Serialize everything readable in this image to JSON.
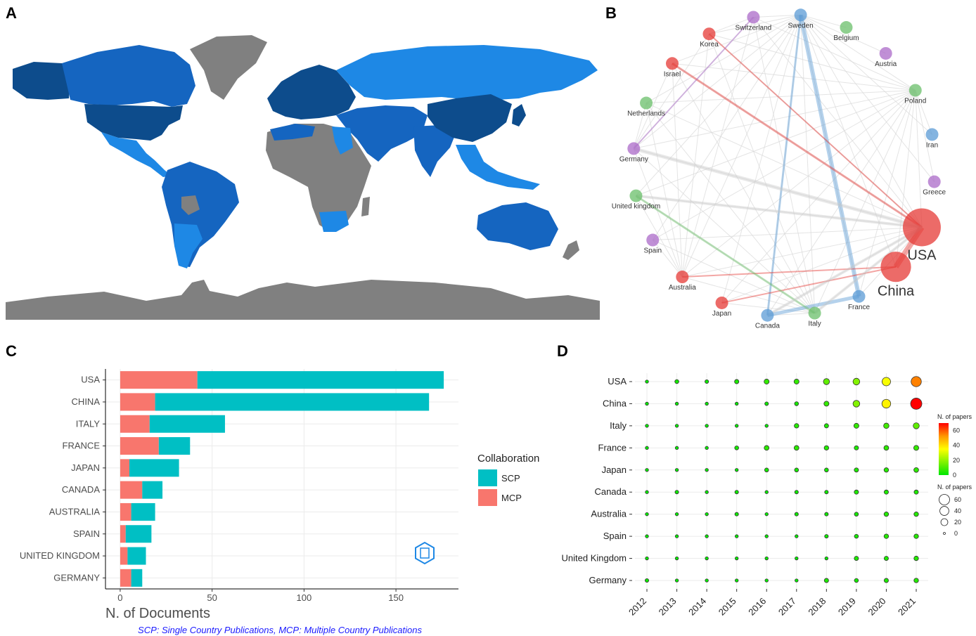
{
  "panels": {
    "a": "A",
    "b": "B",
    "c": "C",
    "d": "D"
  },
  "colors": {
    "ocean": "#ffffff",
    "land_none": "#808080",
    "land_low": "#1e88e5",
    "land_mid": "#1565c0",
    "land_high": "#0d4c8c",
    "scp": "#00bfc4",
    "mcp": "#f8766d",
    "grid": "#ebebeb",
    "net_red": "#e53935",
    "net_blue": "#5b9bd5",
    "net_green": "#6abf69",
    "net_purple": "#ab6ac8"
  },
  "network": {
    "nodes": [
      {
        "name": "Sweden",
        "group": "blue",
        "size": 1
      },
      {
        "name": "Belgium",
        "group": "green",
        "size": 1
      },
      {
        "name": "Austria",
        "group": "purple",
        "size": 1
      },
      {
        "name": "Poland",
        "group": "green",
        "size": 1
      },
      {
        "name": "Iran",
        "group": "blue",
        "size": 1
      },
      {
        "name": "Greece",
        "group": "purple",
        "size": 1
      },
      {
        "name": "USA",
        "group": "red",
        "size": 3
      },
      {
        "name": "China",
        "group": "red",
        "size": 2.4
      },
      {
        "name": "France",
        "group": "blue",
        "size": 1
      },
      {
        "name": "Italy",
        "group": "green",
        "size": 1
      },
      {
        "name": "Canada",
        "group": "blue",
        "size": 1
      },
      {
        "name": "Japan",
        "group": "red",
        "size": 1
      },
      {
        "name": "Australia",
        "group": "red",
        "size": 1
      },
      {
        "name": "Spain",
        "group": "purple",
        "size": 1
      },
      {
        "name": "United kingdom",
        "group": "green",
        "size": 1
      },
      {
        "name": "Germany",
        "group": "purple",
        "size": 1
      },
      {
        "name": "Netherlands",
        "group": "green",
        "size": 1
      },
      {
        "name": "Israel",
        "group": "red",
        "size": 1
      },
      {
        "name": "Korea",
        "group": "red",
        "size": 1
      },
      {
        "name": "Switzerland",
        "group": "purple",
        "size": 1
      }
    ]
  },
  "chart_data": [
    {
      "panel": "C",
      "type": "bar",
      "orientation": "horizontal",
      "stacked": true,
      "categories": [
        "USA",
        "CHINA",
        "ITALY",
        "FRANCE",
        "JAPAN",
        "CANADA",
        "AUSTRALIA",
        "SPAIN",
        "UNITED KINGDOM",
        "GERMANY"
      ],
      "series": [
        {
          "name": "MCP",
          "values": [
            42,
            19,
            16,
            21,
            5,
            12,
            6,
            3,
            4,
            6
          ]
        },
        {
          "name": "SCP",
          "values": [
            134,
            149,
            41,
            17,
            27,
            11,
            13,
            14,
            10,
            6
          ]
        }
      ],
      "xlabel": "N. of Documents",
      "xlim": [
        -8,
        184
      ],
      "xticks": [
        0,
        50,
        100,
        150
      ],
      "legend_title": "Collaboration",
      "legend": [
        {
          "key": "SCP",
          "label": "SCP"
        },
        {
          "key": "MCP",
          "label": "MCP"
        }
      ],
      "caption": "SCP: Single Country Publications, MCP: Multiple Country Publications"
    },
    {
      "panel": "D",
      "type": "scatter",
      "subtype": "bubble",
      "countries": [
        "USA",
        "China",
        "Italy",
        "France",
        "Japan",
        "Canada",
        "Australia",
        "Spain",
        "United Kingdom",
        "Germany"
      ],
      "years": [
        "2012",
        "2013",
        "2014",
        "2015",
        "2016",
        "2017",
        "2018",
        "2019",
        "2020",
        "2021"
      ],
      "values": [
        [
          1,
          3,
          2,
          4,
          7,
          7,
          13,
          18,
          34,
          55
        ],
        [
          1,
          1,
          1,
          1,
          2,
          3,
          7,
          18,
          37,
          70
        ],
        [
          1,
          1,
          1,
          1,
          1,
          5,
          4,
          7,
          9,
          13
        ],
        [
          1,
          1,
          1,
          3,
          6,
          6,
          5,
          4,
          6,
          7
        ],
        [
          1,
          1,
          1,
          1,
          3,
          3,
          3,
          4,
          5,
          6
        ],
        [
          1,
          2,
          1,
          2,
          1,
          2,
          2,
          4,
          4,
          4
        ],
        [
          1,
          1,
          1,
          2,
          1,
          2,
          2,
          3,
          5,
          5
        ],
        [
          1,
          1,
          1,
          1,
          1,
          1,
          2,
          3,
          5,
          5
        ],
        [
          1,
          1,
          1,
          1,
          1,
          1,
          1,
          4,
          4,
          5
        ],
        [
          2,
          1,
          1,
          1,
          1,
          1,
          4,
          3,
          4,
          5
        ]
      ],
      "color_legend_title": "N. of papers",
      "color_ticks": [
        60,
        40,
        20,
        0
      ],
      "color_range": [
        0,
        70
      ],
      "size_legend_title": "N. of papers",
      "size_ticks": [
        60,
        40,
        20,
        0
      ]
    }
  ]
}
